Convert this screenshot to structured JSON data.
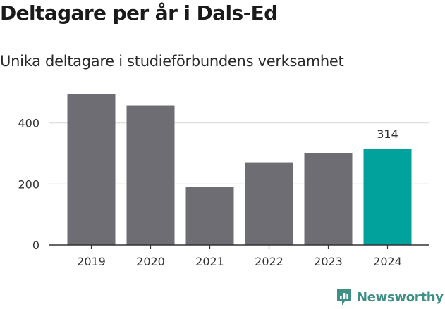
{
  "title": "Deltagare per år i Dals-Ed",
  "subtitle": "Unika deltagare i studieförbundens verksamhet",
  "brand": {
    "name": "Newsworthy",
    "icon": "newsworthy-logo-icon",
    "color": "#3f8f87"
  },
  "colors": {
    "bar": "#6e6d73",
    "highlight": "#00a29b",
    "grid": "#dddddd",
    "axis": "#333333",
    "text": "#333333"
  },
  "chart_data": {
    "type": "bar",
    "title": "Deltagare per år i Dals-Ed",
    "subtitle": "Unika deltagare i studieförbundens verksamhet",
    "xlabel": "",
    "ylabel": "",
    "categories": [
      "2019",
      "2020",
      "2021",
      "2022",
      "2023",
      "2024"
    ],
    "values": [
      494,
      458,
      190,
      271,
      300,
      314
    ],
    "highlight_index": 5,
    "data_labels": [
      null,
      null,
      null,
      null,
      null,
      "314"
    ],
    "ylim": [
      0,
      540
    ],
    "yticks": [
      0,
      200,
      400
    ],
    "ytick_labels": [
      "0",
      "200",
      "400"
    ],
    "grid": true,
    "legend": "none"
  }
}
